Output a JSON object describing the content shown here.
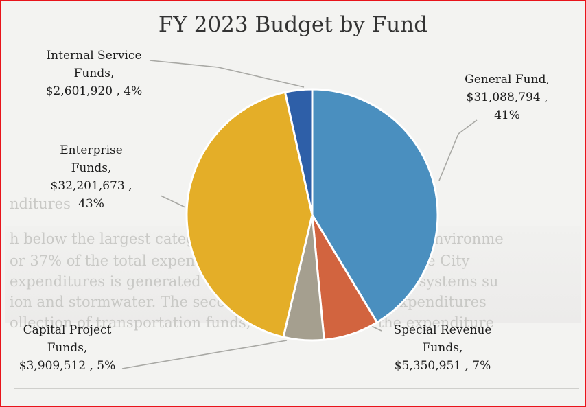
{
  "colors": {
    "frame": "#e8141b",
    "slices": [
      "#4a8fbf",
      "#d2643f",
      "#a59f8f",
      "#e4ae28",
      "#2e5fa8"
    ]
  },
  "chart_data": {
    "type": "pie",
    "title": "FY 2023 Budget by Fund",
    "slices": [
      {
        "id": "general",
        "label": "General Fund",
        "value": 31088794,
        "value_text": "$31,088,794",
        "percent": 41
      },
      {
        "id": "special",
        "label": "Special Revenue Funds",
        "value": 5350951,
        "value_text": "$5,350,951",
        "percent": 7
      },
      {
        "id": "capital",
        "label": "Capital Project Funds",
        "value": 3909512,
        "value_text": "$3,909,512",
        "percent": 5
      },
      {
        "id": "enterprise",
        "label": "Enterprise Funds",
        "value": 32201673,
        "value_text": "$32,201,673",
        "percent": 43
      },
      {
        "id": "internal",
        "label": "Internal Service Funds",
        "value": 2601920,
        "value_text": "$2,601,920",
        "percent": 4
      }
    ],
    "start_angle_deg": 0,
    "direction": "clockwise"
  },
  "labels": {
    "general": [
      "General Fund,",
      "$31,088,794 ,",
      "41%"
    ],
    "special": [
      "Special Revenue",
      "Funds,",
      "$5,350,951 , 7%"
    ],
    "capital": [
      "Capital Project",
      "Funds,",
      "$3,909,512 , 5%"
    ],
    "enterprise": [
      "Enterprise",
      "Funds,",
      "$32,201,673 ,",
      "43%"
    ],
    "internal": [
      "Internal Service",
      "Funds,",
      "$2,601,920 , 4%"
    ]
  },
  "background_text": [
    "nditures",
    "h below the largest category of expenditures is Physical Environme",
    "or 37% of the total expenditures, while the majority of the City",
    "expenditures is generated by the City's enterprise fund systems su",
    "ion and stormwater. The second largest category of expenditures",
    "ollection of transportation funds, which consist of the expenditure"
  ]
}
